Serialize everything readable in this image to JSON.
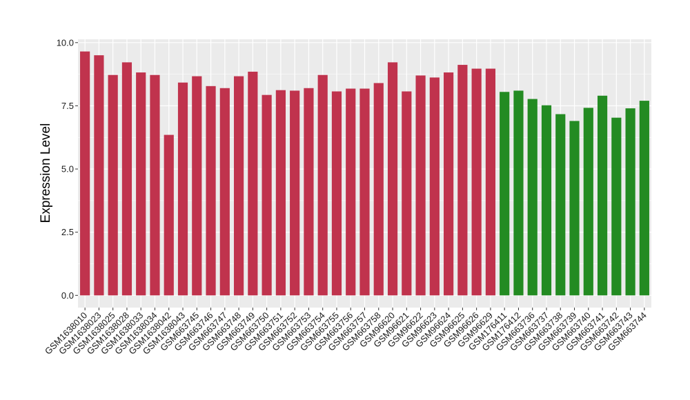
{
  "chart_data": {
    "type": "bar",
    "xlabel": "",
    "ylabel": "Expression Level",
    "ylim": [
      0,
      10.1
    ],
    "yticks": [
      0.0,
      2.5,
      5.0,
      7.5,
      10.0
    ],
    "ytick_labels": [
      "0.0",
      "2.5",
      "5.0",
      "7.5",
      "10.0"
    ],
    "grid": true,
    "legend": "none",
    "panel_color": "#ebebeb",
    "grid_color": "#ffffff",
    "series_colors": {
      "group1": "#c0334d",
      "group2": "#238b22"
    },
    "categories": [
      "GSM1638010",
      "GSM1638023",
      "GSM1638025",
      "GSM1638028",
      "GSM1638033",
      "GSM1638034",
      "GSM1638042",
      "GSM1638043",
      "GSM663745",
      "GSM663746",
      "GSM663747",
      "GSM663748",
      "GSM663749",
      "GSM663750",
      "GSM663751",
      "GSM663752",
      "GSM663753",
      "GSM663754",
      "GSM663755",
      "GSM663756",
      "GSM663757",
      "GSM663758",
      "GSM96620",
      "GSM96621",
      "GSM96622",
      "GSM96623",
      "GSM96624",
      "GSM96625",
      "GSM96626",
      "GSM96629",
      "GSM176411",
      "GSM176412",
      "GSM663736",
      "GSM663737",
      "GSM663738",
      "GSM663739",
      "GSM663740",
      "GSM663741",
      "GSM663742",
      "GSM663743",
      "GSM663744"
    ],
    "values": [
      9.65,
      9.5,
      8.72,
      9.22,
      8.82,
      8.72,
      6.35,
      8.42,
      8.67,
      8.28,
      8.2,
      8.67,
      8.85,
      7.93,
      8.12,
      8.1,
      8.2,
      8.72,
      8.07,
      8.18,
      8.18,
      8.4,
      9.22,
      8.07,
      8.7,
      8.62,
      8.82,
      9.12,
      8.97,
      8.97,
      8.05,
      8.1,
      7.77,
      7.52,
      7.17,
      6.9,
      7.42,
      7.9,
      7.03,
      7.4,
      7.7
    ],
    "groups": [
      "group1",
      "group1",
      "group1",
      "group1",
      "group1",
      "group1",
      "group1",
      "group1",
      "group1",
      "group1",
      "group1",
      "group1",
      "group1",
      "group1",
      "group1",
      "group1",
      "group1",
      "group1",
      "group1",
      "group1",
      "group1",
      "group1",
      "group1",
      "group1",
      "group1",
      "group1",
      "group1",
      "group1",
      "group1",
      "group1",
      "group2",
      "group2",
      "group2",
      "group2",
      "group2",
      "group2",
      "group2",
      "group2",
      "group2",
      "group2",
      "group2"
    ]
  }
}
